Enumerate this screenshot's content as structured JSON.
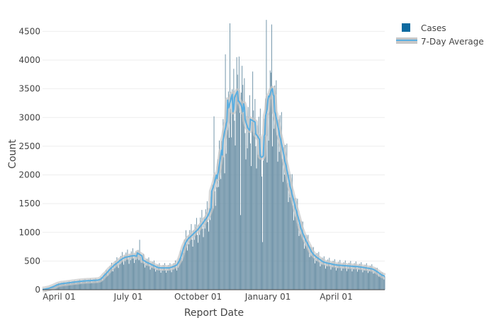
{
  "chart_data": {
    "type": "bar",
    "xlabel": "Report Date",
    "ylabel": "Count",
    "x_range": [
      "2020-03-10",
      "2021-06-04"
    ],
    "ylim": [
      0,
      4800
    ],
    "y_ticks": [
      0,
      500,
      1000,
      1500,
      2000,
      2500,
      3000,
      3500,
      4000,
      4500
    ],
    "x_ticks": [
      {
        "date": "2020-04-01",
        "label": "April 01"
      },
      {
        "date": "2020-07-01",
        "label": "July 01"
      },
      {
        "date": "2020-10-01",
        "label": "October 01"
      },
      {
        "date": "2021-01-01",
        "label": "January 01"
      },
      {
        "date": "2021-04-01",
        "label": "April 01"
      }
    ],
    "grid": "horizontal",
    "legend_position": "top-right",
    "bar_color": "#6f93a8",
    "line_color": "#5aaee0",
    "band_color": "#c7c7c7",
    "series": [
      {
        "name": "Cases",
        "kind": "daily-bars",
        "legend_color": "#0e6aa0",
        "keyframes": [
          {
            "date": "2020-03-10",
            "value": 0
          },
          {
            "date": "2020-03-20",
            "value": 30
          },
          {
            "date": "2020-04-01",
            "value": 100
          },
          {
            "date": "2020-05-01",
            "value": 150
          },
          {
            "date": "2020-05-25",
            "value": 170
          },
          {
            "date": "2020-06-10",
            "value": 400
          },
          {
            "date": "2020-06-25",
            "value": 560
          },
          {
            "date": "2020-07-10",
            "value": 600
          },
          {
            "date": "2020-07-25",
            "value": 480
          },
          {
            "date": "2020-08-10",
            "value": 380
          },
          {
            "date": "2020-08-25",
            "value": 380
          },
          {
            "date": "2020-09-05",
            "value": 440
          },
          {
            "date": "2020-09-15",
            "value": 850
          },
          {
            "date": "2020-10-01",
            "value": 1050
          },
          {
            "date": "2020-10-15",
            "value": 1300
          },
          {
            "date": "2020-10-25",
            "value": 1700
          },
          {
            "date": "2020-11-05",
            "value": 2600
          },
          {
            "date": "2020-11-18",
            "value": 3200
          },
          {
            "date": "2020-11-25",
            "value": 3350
          },
          {
            "date": "2020-12-05",
            "value": 2800
          },
          {
            "date": "2020-12-18",
            "value": 2700
          },
          {
            "date": "2020-12-25",
            "value": 2500
          },
          {
            "date": "2021-01-01",
            "value": 2900
          },
          {
            "date": "2021-01-08",
            "value": 3250
          },
          {
            "date": "2021-01-18",
            "value": 2600
          },
          {
            "date": "2021-02-01",
            "value": 1700
          },
          {
            "date": "2021-02-15",
            "value": 1000
          },
          {
            "date": "2021-03-01",
            "value": 620
          },
          {
            "date": "2021-03-15",
            "value": 480
          },
          {
            "date": "2021-04-01",
            "value": 430
          },
          {
            "date": "2021-05-01",
            "value": 400
          },
          {
            "date": "2021-05-20",
            "value": 360
          },
          {
            "date": "2021-06-04",
            "value": 220
          }
        ],
        "spikes": [
          {
            "date": "2020-11-12",
            "value": 4640
          },
          {
            "date": "2020-11-06",
            "value": 4100
          },
          {
            "date": "2020-11-21",
            "value": 4050
          },
          {
            "date": "2020-11-28",
            "value": 3900
          },
          {
            "date": "2020-12-12",
            "value": 3800
          },
          {
            "date": "2020-12-30",
            "value": 4700
          },
          {
            "date": "2021-01-06",
            "value": 4620
          },
          {
            "date": "2021-01-04",
            "value": 3820
          },
          {
            "date": "2020-10-22",
            "value": 3020
          },
          {
            "date": "2020-10-29",
            "value": 2600
          },
          {
            "date": "2020-07-16",
            "value": 870
          }
        ],
        "dips": [
          {
            "date": "2020-12-25",
            "value": 830
          },
          {
            "date": "2020-11-26",
            "value": 1300
          }
        ]
      },
      {
        "name": "7-Day Average",
        "kind": "line-with-band"
      }
    ]
  }
}
